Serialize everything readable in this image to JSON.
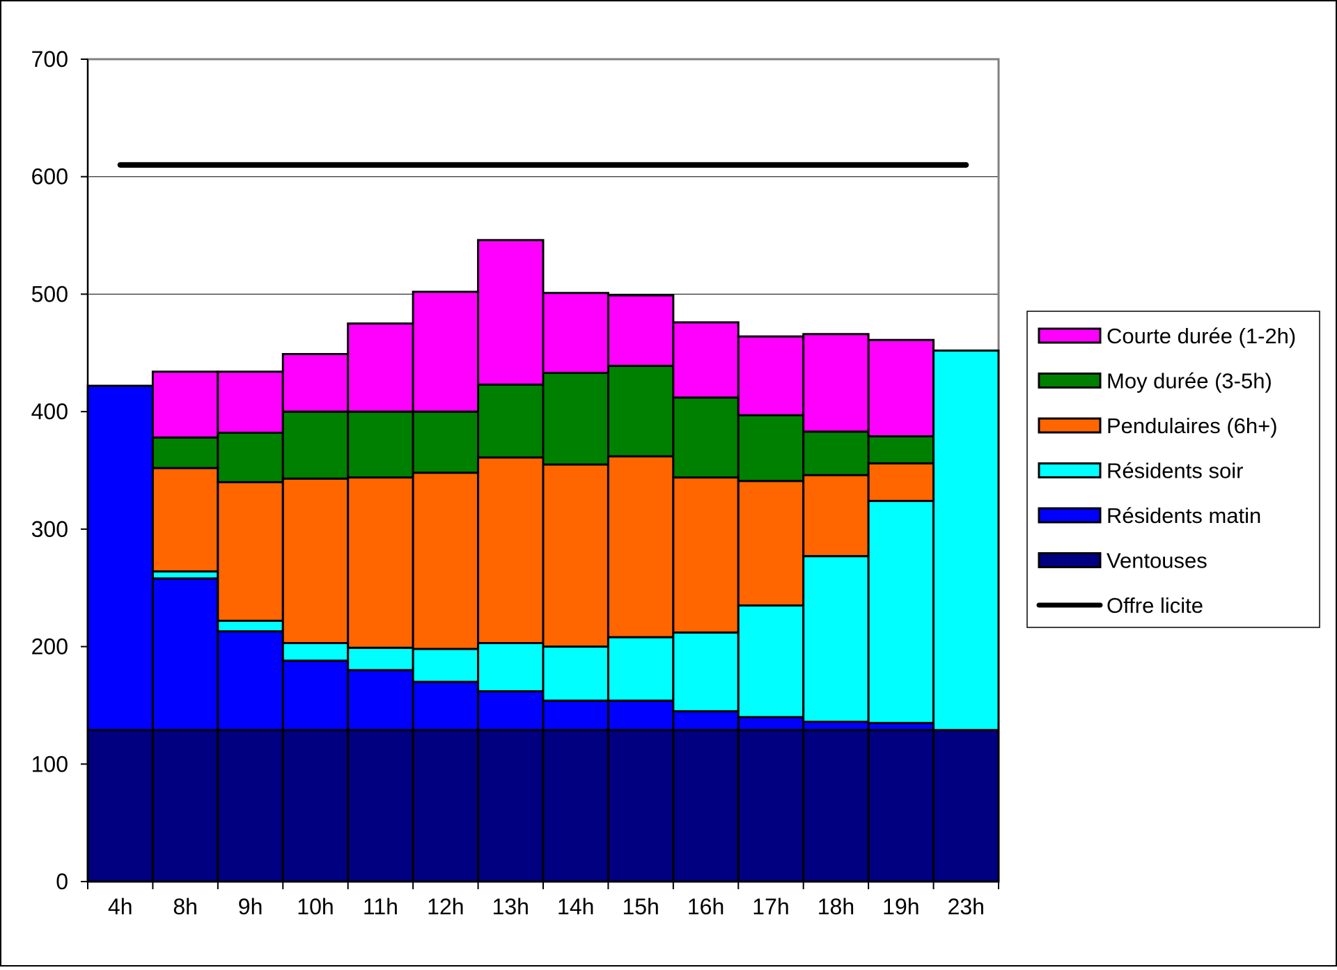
{
  "chart_data": {
    "type": "bar",
    "stacked": true,
    "categories": [
      "4h",
      "8h",
      "9h",
      "10h",
      "11h",
      "12h",
      "13h",
      "14h",
      "15h",
      "16h",
      "17h",
      "18h",
      "19h",
      "23h"
    ],
    "series": [
      {
        "name": "Ventouses",
        "color": "#000080",
        "values": [
          129,
          129,
          129,
          129,
          129,
          129,
          129,
          129,
          129,
          129,
          129,
          129,
          129,
          129
        ]
      },
      {
        "name": "Résidents matin",
        "color": "#0000ff",
        "values": [
          293,
          129,
          84,
          59,
          51,
          41,
          33,
          25,
          25,
          16,
          11,
          7,
          6,
          0
        ]
      },
      {
        "name": "Résidents soir",
        "color": "#00ffff",
        "values": [
          0,
          6,
          9,
          15,
          19,
          28,
          41,
          46,
          54,
          67,
          95,
          141,
          189,
          323
        ]
      },
      {
        "name": "Pendulaires (6h+)",
        "color": "#ff6600",
        "values": [
          0,
          88,
          118,
          140,
          145,
          150,
          158,
          155,
          154,
          132,
          106,
          69,
          32,
          0
        ]
      },
      {
        "name": "Moy durée (3-5h)",
        "color": "#008000",
        "values": [
          0,
          26,
          42,
          57,
          56,
          52,
          62,
          78,
          77,
          68,
          56,
          37,
          23,
          0
        ]
      },
      {
        "name": "Courte durée (1-2h)",
        "color": "#ff00ff",
        "values": [
          0,
          56,
          52,
          49,
          75,
          102,
          123,
          68,
          60,
          64,
          67,
          83,
          82,
          0
        ]
      }
    ],
    "line": {
      "name": "Offre licite",
      "color": "#000000",
      "value": 610
    },
    "ylim": [
      0,
      700
    ],
    "yticks": [
      "0",
      "100",
      "200",
      "300",
      "400",
      "500",
      "600",
      "700"
    ],
    "grid": true,
    "legend_position": "right",
    "legend_order": [
      "Courte durée (1-2h)",
      "Moy durée (3-5h)",
      "Pendulaires (6h+)",
      "Résidents soir",
      "Résidents matin",
      "Ventouses",
      "Offre licite"
    ],
    "title": "",
    "xlabel": "",
    "ylabel": ""
  }
}
